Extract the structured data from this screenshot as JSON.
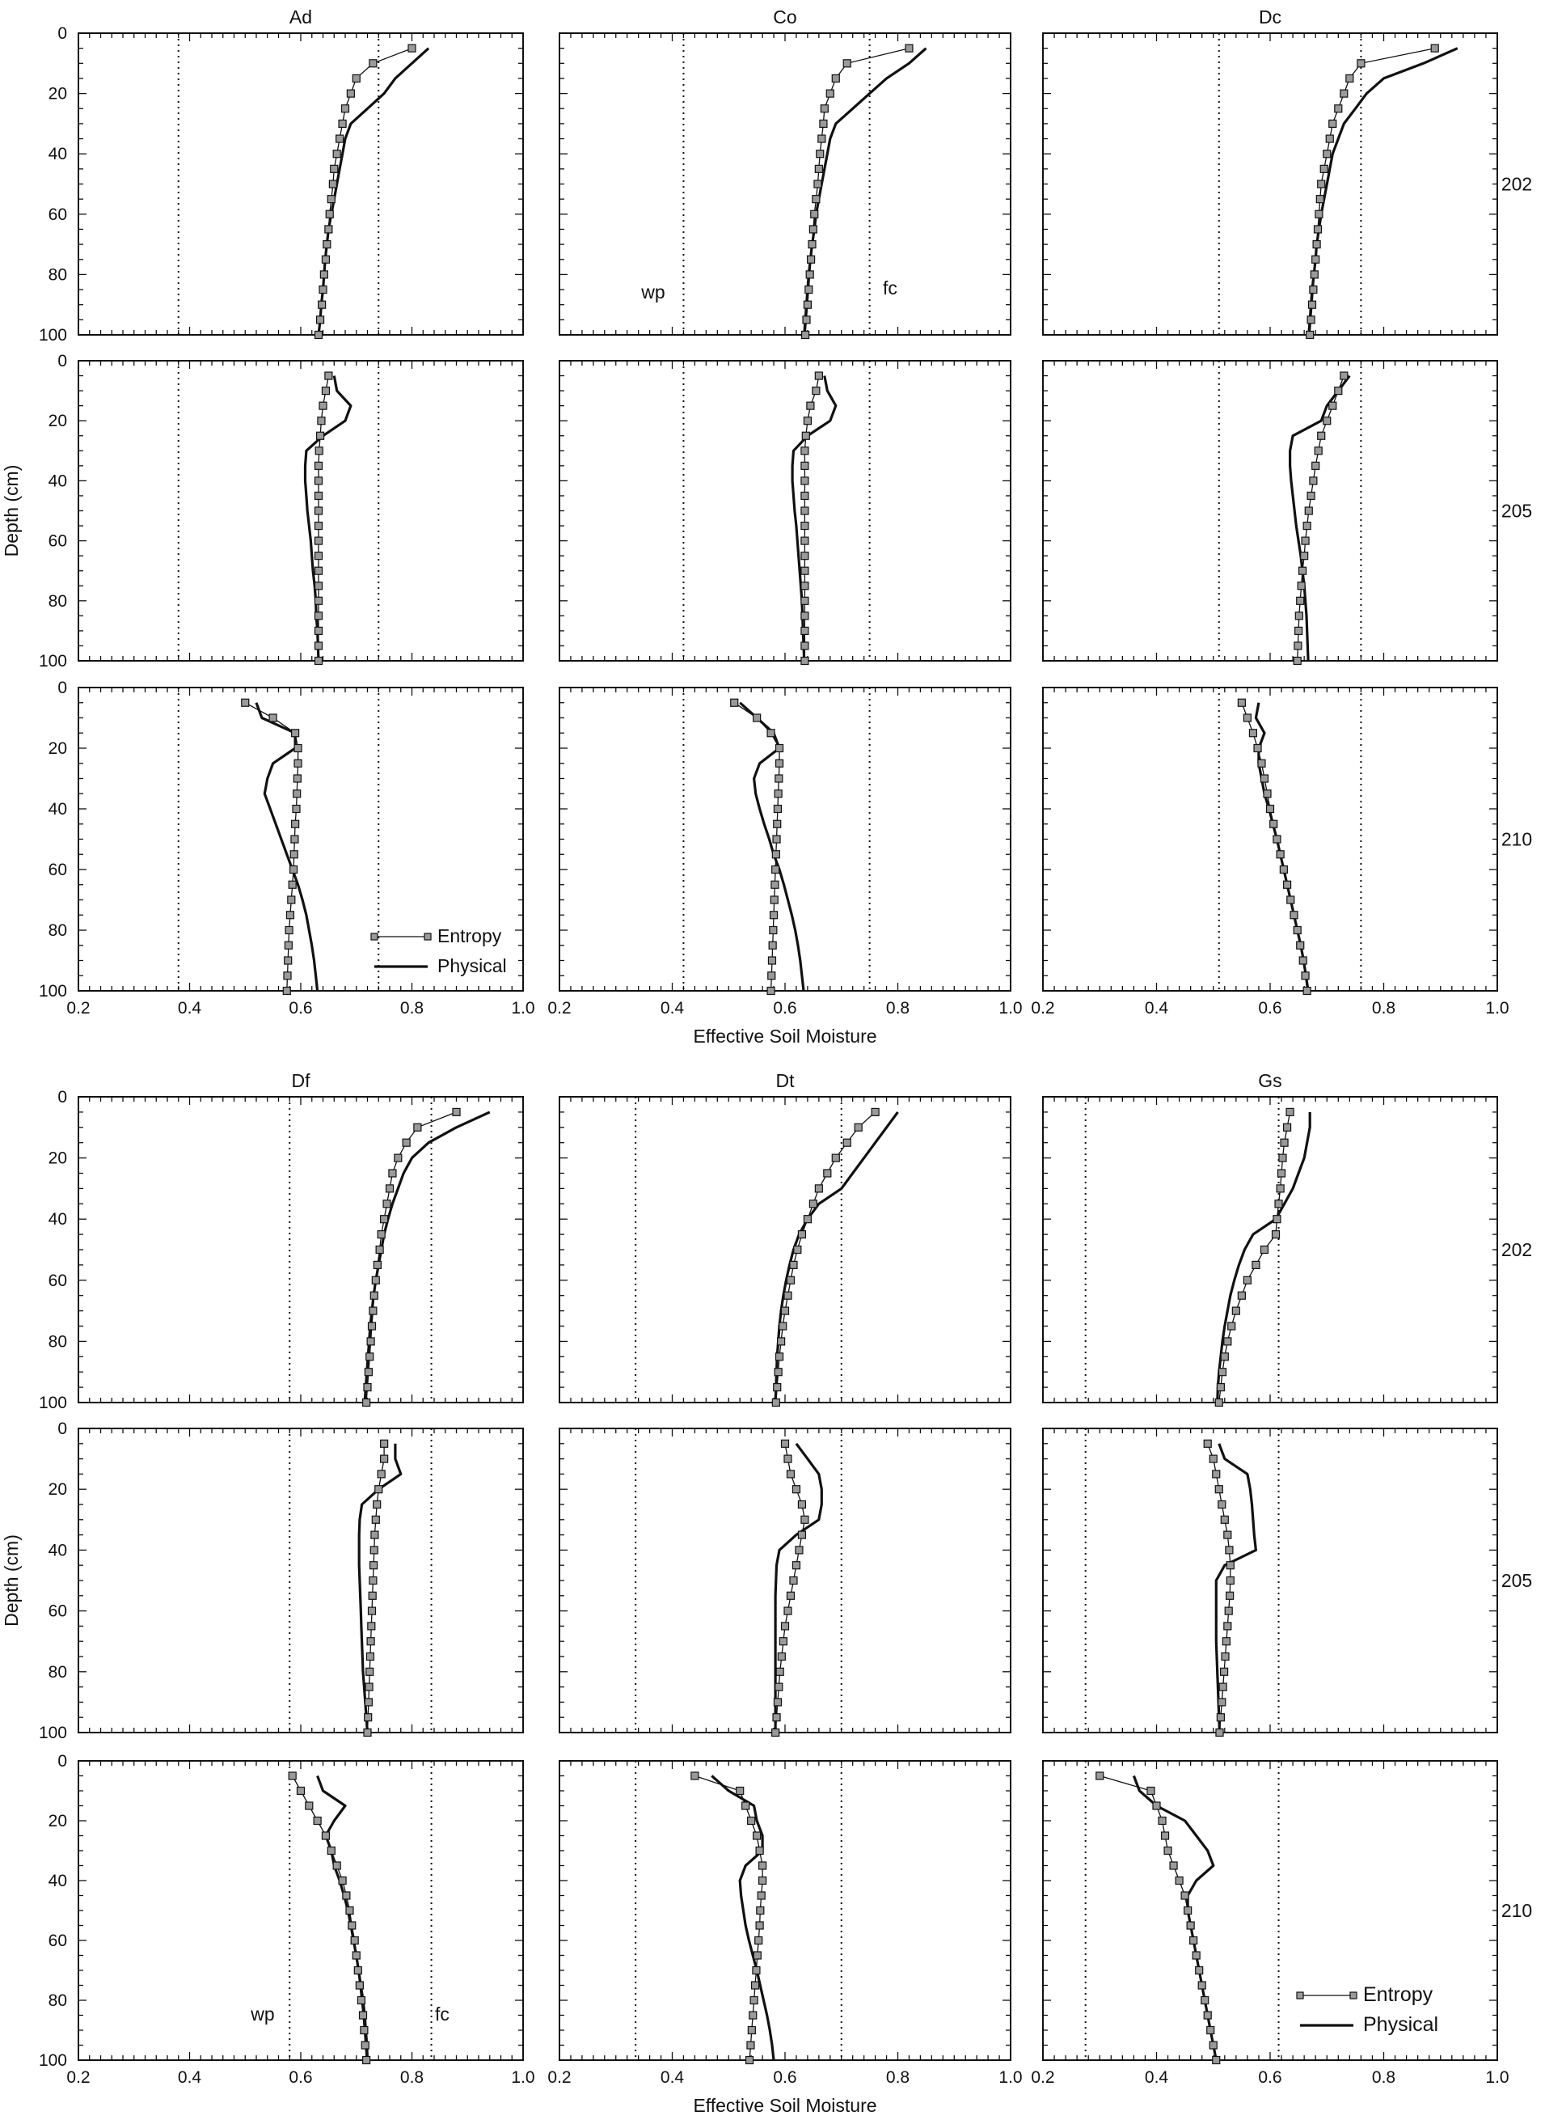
{
  "figure": {
    "panel_label_note": "",
    "groups": [
      {
        "columns": [
          "Ad",
          "Co",
          "Dc"
        ],
        "rows": [
          "202",
          "205",
          "210"
        ],
        "xlabel": "Effective Soil Moisture",
        "ylabel": "Depth (cm)",
        "xticklabels": [
          "0.2",
          "0.4",
          "0.6",
          "0.8",
          "1.0"
        ],
        "yticklabels": [
          "0",
          "20",
          "40",
          "60",
          "80",
          "100"
        ]
      },
      {
        "columns": [
          "Df",
          "Dt",
          "Gs"
        ],
        "rows": [
          "202",
          "205",
          "210"
        ],
        "xlabel": "Effective Soil Moisture",
        "ylabel": "Depth (cm)",
        "xticklabels": [
          "0.2",
          "0.4",
          "0.6",
          "0.8",
          "1.0"
        ],
        "yticklabels": [
          "0",
          "20",
          "40",
          "60",
          "80",
          "100"
        ]
      }
    ],
    "legend_entropy": "Entropy",
    "legend_physical": "Physical",
    "wp_label": "wp",
    "fc_label": "fc"
  },
  "colors": {
    "axis": "#111111",
    "series": "#111111",
    "marker_fill": "#9a9a9a"
  },
  "chart_data": {
    "type": "line",
    "xlabel": "Effective Soil Moisture",
    "ylabel": "Depth (cm)",
    "xlim": [
      0.2,
      1.0
    ],
    "ylim": [
      100,
      0
    ],
    "depths": [
      5,
      10,
      15,
      20,
      25,
      30,
      35,
      40,
      45,
      50,
      55,
      60,
      65,
      70,
      75,
      80,
      85,
      90,
      95,
      100
    ],
    "series_names": [
      "Entropy",
      "Physical"
    ],
    "panels": [
      {
        "group": 0,
        "column": "Ad",
        "row": "202",
        "wp": 0.38,
        "fc": 0.74,
        "entropy": [
          0.8,
          0.73,
          0.7,
          0.69,
          0.68,
          0.675,
          0.67,
          0.665,
          0.66,
          0.658,
          0.655,
          0.652,
          0.65,
          0.647,
          0.645,
          0.642,
          0.64,
          0.638,
          0.635,
          0.632
        ],
        "physical": [
          0.83,
          0.8,
          0.77,
          0.75,
          0.72,
          0.69,
          0.68,
          0.675,
          0.67,
          0.665,
          0.66,
          0.655,
          0.65,
          0.647,
          0.644,
          0.642,
          0.64,
          0.637,
          0.635,
          0.632
        ]
      },
      {
        "group": 0,
        "column": "Co",
        "row": "202",
        "wp": 0.42,
        "fc": 0.75,
        "entropy": [
          0.82,
          0.71,
          0.69,
          0.68,
          0.67,
          0.668,
          0.665,
          0.662,
          0.66,
          0.658,
          0.655,
          0.652,
          0.65,
          0.648,
          0.646,
          0.644,
          0.642,
          0.64,
          0.638,
          0.636
        ],
        "physical": [
          0.85,
          0.82,
          0.78,
          0.75,
          0.72,
          0.69,
          0.68,
          0.675,
          0.67,
          0.665,
          0.66,
          0.655,
          0.652,
          0.648,
          0.645,
          0.642,
          0.64,
          0.638,
          0.636,
          0.634
        ]
      },
      {
        "group": 0,
        "column": "Dc",
        "row": "202",
        "wp": 0.51,
        "fc": 0.76,
        "entropy": [
          0.89,
          0.76,
          0.74,
          0.73,
          0.72,
          0.71,
          0.705,
          0.7,
          0.695,
          0.69,
          0.688,
          0.686,
          0.684,
          0.682,
          0.68,
          0.678,
          0.676,
          0.674,
          0.672,
          0.67
        ],
        "physical": [
          0.93,
          0.87,
          0.8,
          0.77,
          0.75,
          0.73,
          0.72,
          0.71,
          0.705,
          0.7,
          0.695,
          0.69,
          0.686,
          0.682,
          0.68,
          0.677,
          0.674,
          0.672,
          0.67,
          0.668
        ]
      },
      {
        "group": 0,
        "column": "Ad",
        "row": "205",
        "wp": 0.38,
        "fc": 0.74,
        "entropy": [
          0.65,
          0.645,
          0.64,
          0.637,
          0.635,
          0.633,
          0.632,
          0.632,
          0.632,
          0.632,
          0.632,
          0.632,
          0.632,
          0.632,
          0.632,
          0.632,
          0.632,
          0.632,
          0.632,
          0.632
        ],
        "physical": [
          0.66,
          0.665,
          0.69,
          0.68,
          0.64,
          0.61,
          0.608,
          0.608,
          0.61,
          0.612,
          0.615,
          0.618,
          0.62,
          0.622,
          0.625,
          0.627,
          0.628,
          0.63,
          0.631,
          0.632
        ]
      },
      {
        "group": 0,
        "column": "Co",
        "row": "205",
        "wp": 0.42,
        "fc": 0.75,
        "entropy": [
          0.66,
          0.655,
          0.645,
          0.64,
          0.637,
          0.635,
          0.635,
          0.635,
          0.635,
          0.635,
          0.635,
          0.635,
          0.635,
          0.635,
          0.635,
          0.635,
          0.635,
          0.635,
          0.635,
          0.635
        ],
        "physical": [
          0.67,
          0.675,
          0.69,
          0.68,
          0.64,
          0.615,
          0.613,
          0.613,
          0.615,
          0.617,
          0.62,
          0.622,
          0.624,
          0.626,
          0.628,
          0.63,
          0.631,
          0.632,
          0.633,
          0.634
        ]
      },
      {
        "group": 0,
        "column": "Dc",
        "row": "205",
        "wp": 0.51,
        "fc": 0.76,
        "entropy": [
          0.73,
          0.72,
          0.71,
          0.7,
          0.69,
          0.685,
          0.68,
          0.676,
          0.672,
          0.668,
          0.665,
          0.662,
          0.66,
          0.657,
          0.655,
          0.653,
          0.651,
          0.65,
          0.649,
          0.648
        ],
        "physical": [
          0.74,
          0.72,
          0.7,
          0.69,
          0.64,
          0.635,
          0.635,
          0.637,
          0.64,
          0.643,
          0.646,
          0.65,
          0.654,
          0.657,
          0.66,
          0.662,
          0.664,
          0.665,
          0.666,
          0.667
        ]
      },
      {
        "group": 0,
        "column": "Ad",
        "row": "210",
        "wp": 0.38,
        "fc": 0.74,
        "entropy": [
          0.5,
          0.55,
          0.59,
          0.595,
          0.595,
          0.594,
          0.593,
          0.592,
          0.59,
          0.589,
          0.588,
          0.587,
          0.585,
          0.583,
          0.581,
          0.579,
          0.578,
          0.577,
          0.576,
          0.575
        ],
        "physical": [
          0.52,
          0.53,
          0.59,
          0.59,
          0.55,
          0.54,
          0.535,
          0.545,
          0.555,
          0.565,
          0.575,
          0.585,
          0.595,
          0.603,
          0.61,
          0.615,
          0.62,
          0.624,
          0.627,
          0.63
        ]
      },
      {
        "group": 0,
        "column": "Co",
        "row": "210",
        "wp": 0.42,
        "fc": 0.75,
        "entropy": [
          0.51,
          0.55,
          0.575,
          0.59,
          0.59,
          0.589,
          0.588,
          0.587,
          0.586,
          0.585,
          0.584,
          0.583,
          0.582,
          0.581,
          0.58,
          0.579,
          0.578,
          0.577,
          0.576,
          0.575
        ],
        "physical": [
          0.52,
          0.55,
          0.58,
          0.59,
          0.555,
          0.545,
          0.548,
          0.555,
          0.563,
          0.572,
          0.58,
          0.59,
          0.598,
          0.605,
          0.612,
          0.618,
          0.623,
          0.627,
          0.63,
          0.633
        ]
      },
      {
        "group": 0,
        "column": "Dc",
        "row": "210",
        "wp": 0.51,
        "fc": 0.76,
        "entropy": [
          0.55,
          0.56,
          0.57,
          0.578,
          0.585,
          0.59,
          0.595,
          0.6,
          0.606,
          0.612,
          0.618,
          0.624,
          0.63,
          0.636,
          0.642,
          0.648,
          0.653,
          0.658,
          0.662,
          0.665
        ],
        "physical": [
          0.58,
          0.575,
          0.59,
          0.58,
          0.58,
          0.585,
          0.59,
          0.598,
          0.605,
          0.612,
          0.618,
          0.624,
          0.63,
          0.636,
          0.642,
          0.648,
          0.654,
          0.659,
          0.663,
          0.667
        ]
      },
      {
        "group": 1,
        "column": "Df",
        "row": "202",
        "wp": 0.58,
        "fc": 0.835,
        "entropy": [
          0.88,
          0.81,
          0.79,
          0.775,
          0.765,
          0.76,
          0.755,
          0.75,
          0.745,
          0.742,
          0.738,
          0.735,
          0.732,
          0.73,
          0.728,
          0.726,
          0.724,
          0.722,
          0.72,
          0.718
        ],
        "physical": [
          0.94,
          0.88,
          0.83,
          0.8,
          0.785,
          0.775,
          0.765,
          0.757,
          0.75,
          0.745,
          0.74,
          0.735,
          0.731,
          0.728,
          0.725,
          0.723,
          0.721,
          0.719,
          0.717,
          0.715
        ]
      },
      {
        "group": 1,
        "column": "Dt",
        "row": "202",
        "wp": 0.335,
        "fc": 0.7,
        "entropy": [
          0.76,
          0.73,
          0.71,
          0.69,
          0.675,
          0.66,
          0.65,
          0.64,
          0.63,
          0.622,
          0.615,
          0.61,
          0.605,
          0.6,
          0.596,
          0.593,
          0.59,
          0.588,
          0.586,
          0.584
        ],
        "physical": [
          0.8,
          0.78,
          0.76,
          0.74,
          0.72,
          0.7,
          0.66,
          0.64,
          0.625,
          0.615,
          0.608,
          0.602,
          0.597,
          0.593,
          0.59,
          0.588,
          0.586,
          0.585,
          0.584,
          0.583
        ]
      },
      {
        "group": 1,
        "column": "Gs",
        "row": "202",
        "wp": 0.275,
        "fc": 0.615,
        "entropy": [
          0.635,
          0.63,
          0.625,
          0.622,
          0.62,
          0.618,
          0.615,
          0.612,
          0.61,
          0.59,
          0.575,
          0.56,
          0.55,
          0.54,
          0.532,
          0.525,
          0.52,
          0.516,
          0.513,
          0.51
        ],
        "physical": [
          0.67,
          0.67,
          0.665,
          0.66,
          0.65,
          0.64,
          0.625,
          0.61,
          0.57,
          0.555,
          0.545,
          0.537,
          0.53,
          0.525,
          0.52,
          0.516,
          0.513,
          0.51,
          0.508,
          0.507
        ]
      },
      {
        "group": 1,
        "column": "Df",
        "row": "205",
        "wp": 0.58,
        "fc": 0.835,
        "entropy": [
          0.75,
          0.75,
          0.745,
          0.74,
          0.737,
          0.735,
          0.733,
          0.732,
          0.731,
          0.73,
          0.729,
          0.728,
          0.727,
          0.726,
          0.725,
          0.724,
          0.723,
          0.722,
          0.721,
          0.72
        ],
        "physical": [
          0.77,
          0.77,
          0.78,
          0.74,
          0.71,
          0.706,
          0.705,
          0.705,
          0.705,
          0.706,
          0.707,
          0.708,
          0.709,
          0.71,
          0.711,
          0.712,
          0.714,
          0.716,
          0.718,
          0.72
        ]
      },
      {
        "group": 1,
        "column": "Dt",
        "row": "205",
        "wp": 0.335,
        "fc": 0.7,
        "entropy": [
          0.6,
          0.605,
          0.61,
          0.62,
          0.63,
          0.635,
          0.63,
          0.625,
          0.62,
          0.615,
          0.61,
          0.605,
          0.6,
          0.597,
          0.594,
          0.591,
          0.589,
          0.587,
          0.585,
          0.583
        ],
        "physical": [
          0.62,
          0.64,
          0.66,
          0.665,
          0.665,
          0.66,
          0.62,
          0.59,
          0.585,
          0.584,
          0.583,
          0.583,
          0.583,
          0.583,
          0.583,
          0.583,
          0.583,
          0.583,
          0.583,
          0.583
        ]
      },
      {
        "group": 1,
        "column": "Gs",
        "row": "205",
        "wp": 0.275,
        "fc": 0.615,
        "entropy": [
          0.49,
          0.5,
          0.505,
          0.51,
          0.515,
          0.52,
          0.525,
          0.528,
          0.53,
          0.53,
          0.529,
          0.527,
          0.525,
          0.523,
          0.521,
          0.519,
          0.517,
          0.515,
          0.513,
          0.511
        ],
        "physical": [
          0.51,
          0.52,
          0.56,
          0.565,
          0.568,
          0.57,
          0.572,
          0.575,
          0.52,
          0.505,
          0.505,
          0.505,
          0.505,
          0.505,
          0.506,
          0.507,
          0.508,
          0.509,
          0.51,
          0.511
        ]
      },
      {
        "group": 1,
        "column": "Df",
        "row": "210",
        "wp": 0.58,
        "fc": 0.835,
        "entropy": [
          0.585,
          0.6,
          0.615,
          0.63,
          0.645,
          0.655,
          0.665,
          0.675,
          0.682,
          0.688,
          0.692,
          0.697,
          0.7,
          0.703,
          0.706,
          0.709,
          0.712,
          0.714,
          0.716,
          0.718
        ],
        "physical": [
          0.63,
          0.64,
          0.68,
          0.66,
          0.645,
          0.655,
          0.66,
          0.67,
          0.678,
          0.685,
          0.69,
          0.695,
          0.7,
          0.704,
          0.708,
          0.712,
          0.715,
          0.717,
          0.719,
          0.72
        ]
      },
      {
        "group": 1,
        "column": "Dt",
        "row": "210",
        "wp": 0.335,
        "fc": 0.7,
        "entropy": [
          0.44,
          0.52,
          0.53,
          0.54,
          0.55,
          0.555,
          0.56,
          0.56,
          0.558,
          0.556,
          0.555,
          0.553,
          0.551,
          0.549,
          0.547,
          0.545,
          0.543,
          0.541,
          0.539,
          0.537
        ],
        "physical": [
          0.47,
          0.5,
          0.545,
          0.55,
          0.56,
          0.56,
          0.53,
          0.52,
          0.522,
          0.526,
          0.53,
          0.536,
          0.543,
          0.55,
          0.556,
          0.562,
          0.568,
          0.573,
          0.577,
          0.58
        ]
      },
      {
        "group": 1,
        "column": "Gs",
        "row": "210",
        "wp": 0.275,
        "fc": 0.615,
        "entropy": [
          0.3,
          0.39,
          0.4,
          0.41,
          0.415,
          0.42,
          0.43,
          0.44,
          0.45,
          0.455,
          0.46,
          0.465,
          0.47,
          0.475,
          0.48,
          0.485,
          0.49,
          0.495,
          0.5,
          0.505
        ],
        "physical": [
          0.36,
          0.37,
          0.4,
          0.45,
          0.47,
          0.49,
          0.5,
          0.47,
          0.455,
          0.455,
          0.46,
          0.465,
          0.47,
          0.475,
          0.48,
          0.485,
          0.49,
          0.495,
          0.5,
          0.505
        ]
      }
    ]
  }
}
